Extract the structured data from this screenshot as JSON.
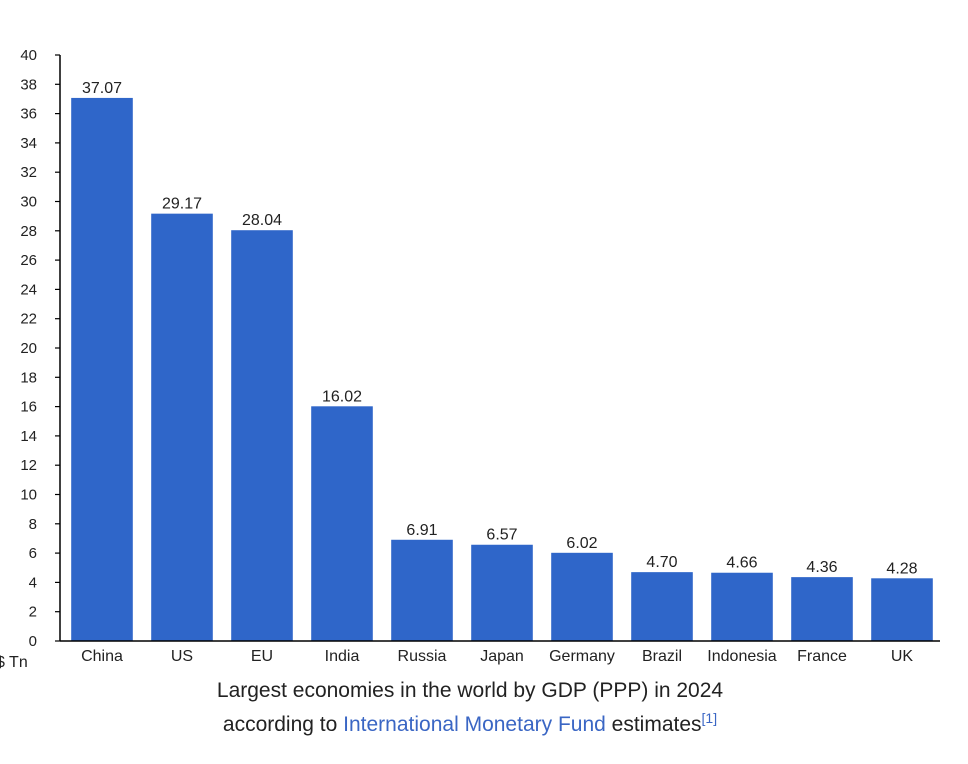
{
  "chart_data": {
    "type": "bar",
    "categories": [
      "China",
      "US",
      "EU",
      "India",
      "Russia",
      "Japan",
      "Germany",
      "Brazil",
      "Indonesia",
      "France",
      "UK"
    ],
    "values": [
      37.07,
      29.17,
      28.04,
      16.02,
      6.91,
      6.57,
      6.02,
      4.7,
      4.66,
      4.36,
      4.28
    ],
    "value_labels": [
      "37.07",
      "29.17",
      "28.04",
      "16.02",
      "6.91",
      "6.57",
      "6.02",
      "4.70",
      "4.66",
      "4.36",
      "4.28"
    ],
    "ylabel": "$ Tn",
    "xlabel": "",
    "ylim": [
      0,
      40
    ],
    "yticks": [
      0,
      2,
      4,
      6,
      8,
      10,
      12,
      14,
      16,
      18,
      20,
      22,
      24,
      26,
      28,
      30,
      32,
      34,
      36,
      38,
      40
    ],
    "bar_color": "#2f66c9",
    "grid": false,
    "legend": "none"
  },
  "caption": {
    "line1": "Largest economies in the world by GDP (PPP) in 2024",
    "line2_prefix": "according to ",
    "link_text": "International Monetary Fund",
    "line2_suffix": " estimates",
    "citation": "[1]",
    "link_color": "#3a66c4"
  }
}
